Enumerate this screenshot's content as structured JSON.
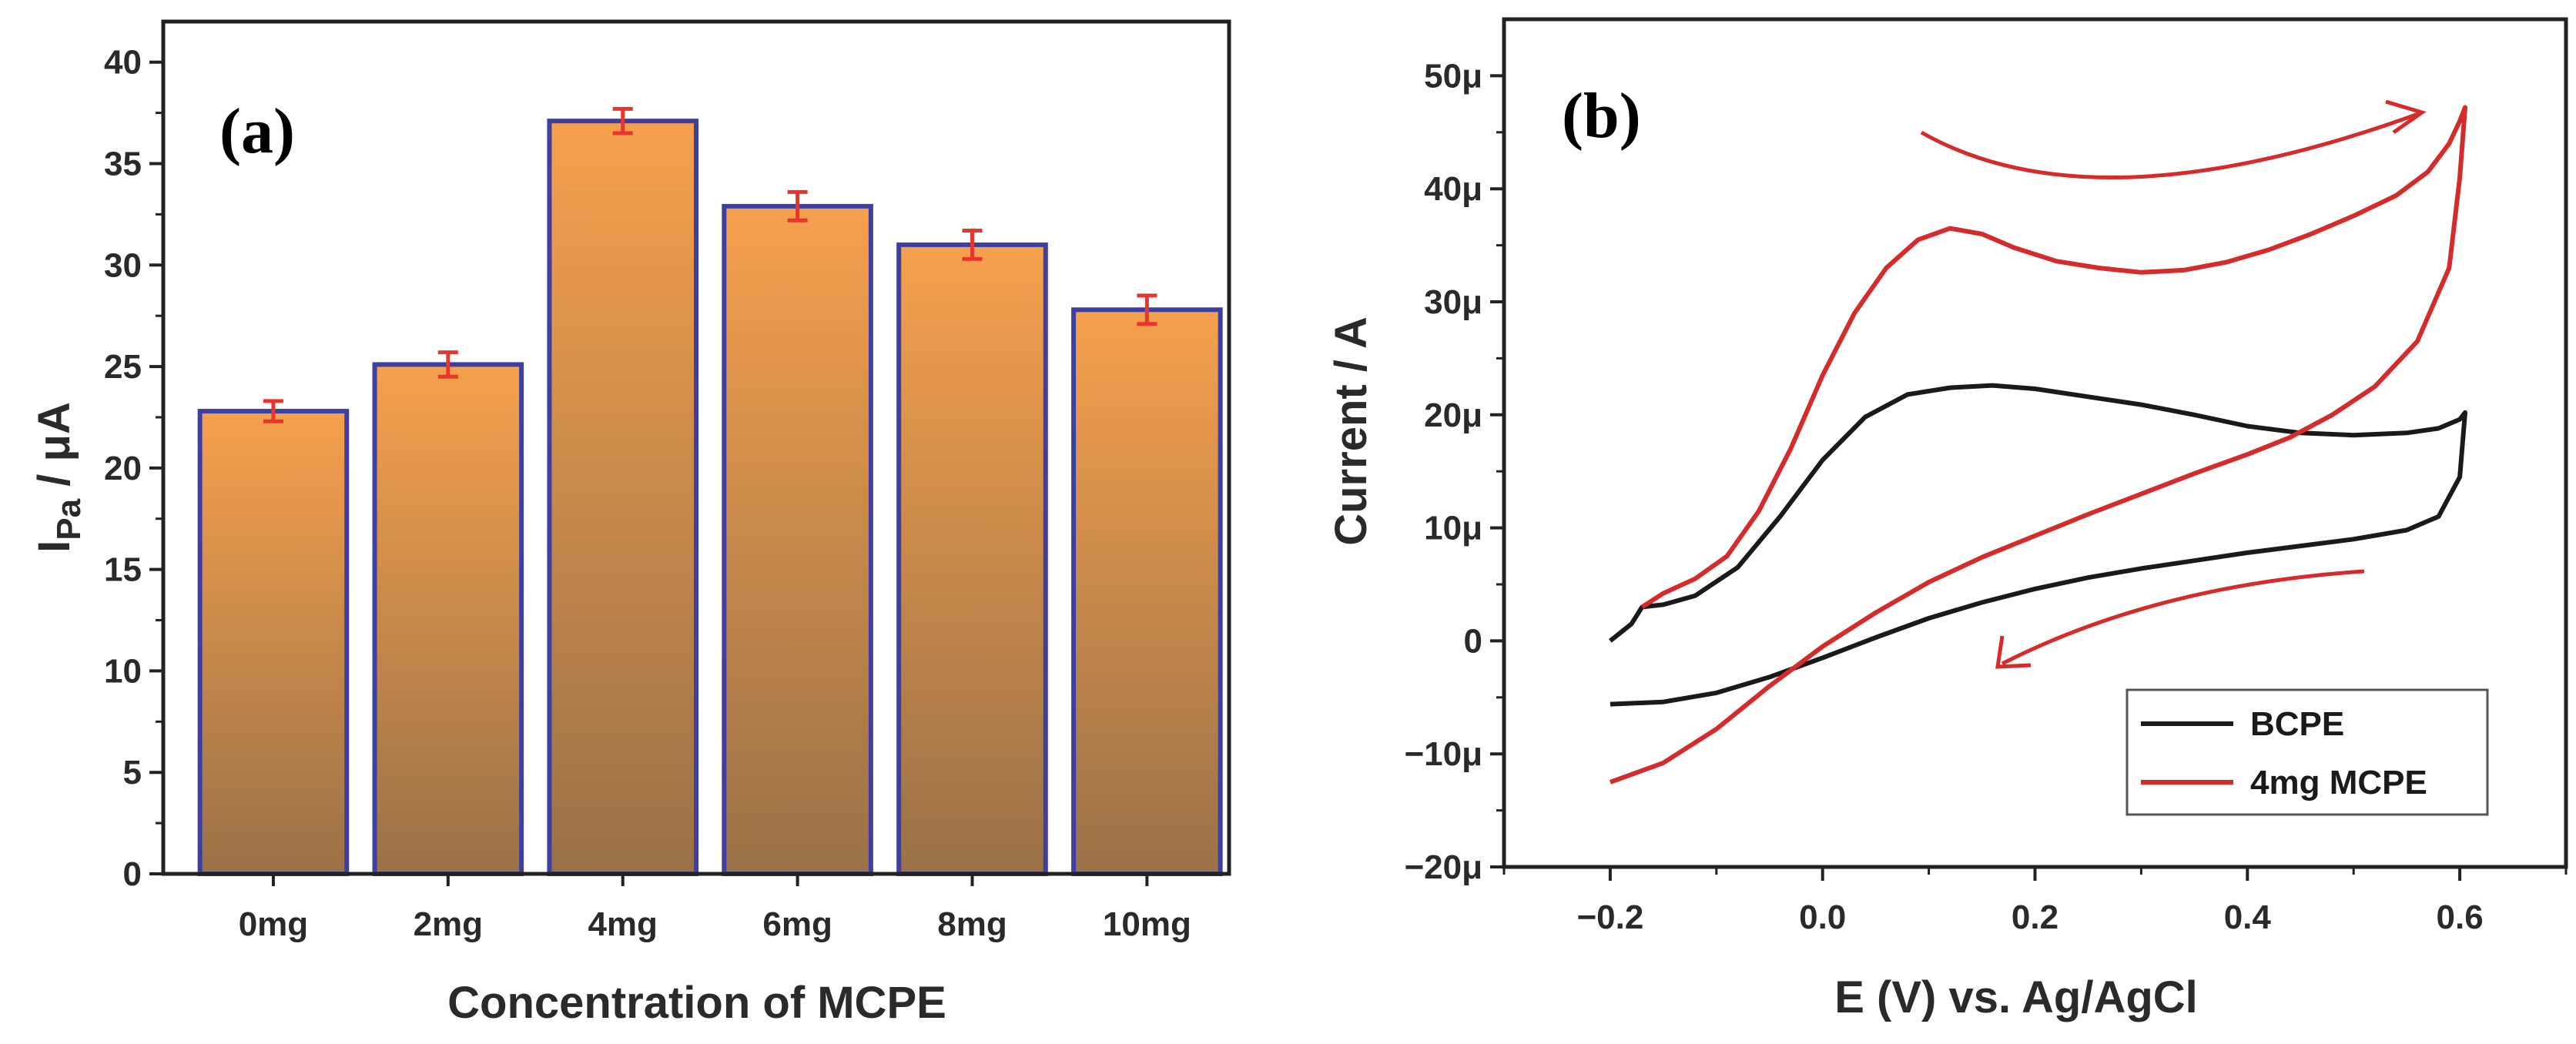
{
  "colors": {
    "bar_top": "#f5a04c",
    "bar_bottom": "#9a7148",
    "bar_edge": "#3f3fa0",
    "error_bar": "#e8362f",
    "bcpe": "#1a1a1a",
    "mcpe": "#d42b2b",
    "axis": "#222222"
  },
  "chart_data": [
    {
      "type": "bar",
      "panel_label": "(a)",
      "categories": [
        "0mg",
        "2mg",
        "4mg",
        "6mg",
        "8mg",
        "10mg"
      ],
      "values": [
        22.8,
        25.1,
        37.1,
        32.9,
        31.0,
        27.8
      ],
      "errors": [
        0.5,
        0.6,
        0.6,
        0.7,
        0.7,
        0.7
      ],
      "xlabel": "Concentration of MCPE",
      "ylabel_main": "I",
      "ylabel_sub": "Pa",
      "ylabel_unit": " / μA",
      "ylim": [
        0,
        42
      ],
      "yticks": [
        0,
        5,
        10,
        15,
        20,
        25,
        30,
        35,
        40
      ],
      "ytick_labels": [
        "0",
        "5",
        "10",
        "15",
        "20",
        "25",
        "30",
        "35",
        "40"
      ]
    },
    {
      "type": "line",
      "panel_label": "(b)",
      "xlabel": "E (V) vs. Ag/AgCl",
      "ylabel": "Current / A",
      "xlim": [
        -0.3,
        0.7
      ],
      "ylim": [
        -20,
        55
      ],
      "xticks": [
        -0.2,
        0.0,
        0.2,
        0.4,
        0.6
      ],
      "xtick_labels": [
        "−0.2",
        "0.0",
        "0.2",
        "0.4",
        "0.6"
      ],
      "yticks": [
        -20,
        -10,
        0,
        10,
        20,
        30,
        40,
        50
      ],
      "ytick_labels": [
        "−20μ",
        "−10μ",
        "0",
        "10μ",
        "20μ",
        "30μ",
        "40μ",
        "50μ"
      ],
      "series": [
        {
          "name": "BCPE",
          "x": [
            -0.2,
            -0.18,
            -0.17,
            -0.15,
            -0.12,
            -0.08,
            -0.04,
            0.0,
            0.04,
            0.08,
            0.12,
            0.16,
            0.2,
            0.25,
            0.3,
            0.35,
            0.4,
            0.45,
            0.5,
            0.55,
            0.58,
            0.6,
            0.605,
            0.6,
            0.58,
            0.55,
            0.5,
            0.45,
            0.4,
            0.35,
            0.3,
            0.25,
            0.2,
            0.15,
            0.1,
            0.05,
            0.0,
            -0.05,
            -0.1,
            -0.15,
            -0.2
          ],
          "y": [
            0.0,
            1.5,
            3.0,
            3.2,
            4.0,
            6.5,
            11.0,
            16.0,
            19.8,
            21.8,
            22.4,
            22.6,
            22.3,
            21.6,
            20.9,
            20.0,
            19.0,
            18.4,
            18.2,
            18.4,
            18.8,
            19.6,
            20.2,
            14.5,
            11.0,
            9.8,
            9.0,
            8.4,
            7.8,
            7.1,
            6.4,
            5.6,
            4.6,
            3.4,
            2.0,
            0.3,
            -1.5,
            -3.2,
            -4.6,
            -5.4,
            -5.6
          ]
        },
        {
          "name": "4mg MCPE",
          "x": [
            -0.17,
            -0.15,
            -0.12,
            -0.09,
            -0.06,
            -0.03,
            0.0,
            0.03,
            0.06,
            0.09,
            0.12,
            0.15,
            0.18,
            0.22,
            0.26,
            0.3,
            0.34,
            0.38,
            0.42,
            0.46,
            0.5,
            0.54,
            0.57,
            0.59,
            0.6,
            0.605,
            0.6,
            0.59,
            0.56,
            0.52,
            0.48,
            0.44,
            0.4,
            0.35,
            0.3,
            0.25,
            0.2,
            0.15,
            0.1,
            0.05,
            0.0,
            -0.05,
            -0.1,
            -0.15,
            -0.2
          ],
          "y": [
            3.0,
            4.2,
            5.5,
            7.5,
            11.5,
            17.0,
            23.5,
            29.0,
            33.0,
            35.5,
            36.5,
            36.0,
            34.8,
            33.6,
            33.0,
            32.6,
            32.8,
            33.5,
            34.6,
            36.0,
            37.6,
            39.4,
            41.5,
            44.0,
            46.0,
            47.2,
            41.0,
            33.0,
            26.5,
            22.5,
            20.0,
            18.0,
            16.5,
            14.8,
            13.0,
            11.2,
            9.3,
            7.4,
            5.2,
            2.5,
            -0.5,
            -4.0,
            -7.8,
            -10.8,
            -12.5
          ]
        }
      ],
      "legend": {
        "location": "bottom-right",
        "entries": [
          "BCPE",
          "4mg MCPE"
        ]
      }
    }
  ]
}
